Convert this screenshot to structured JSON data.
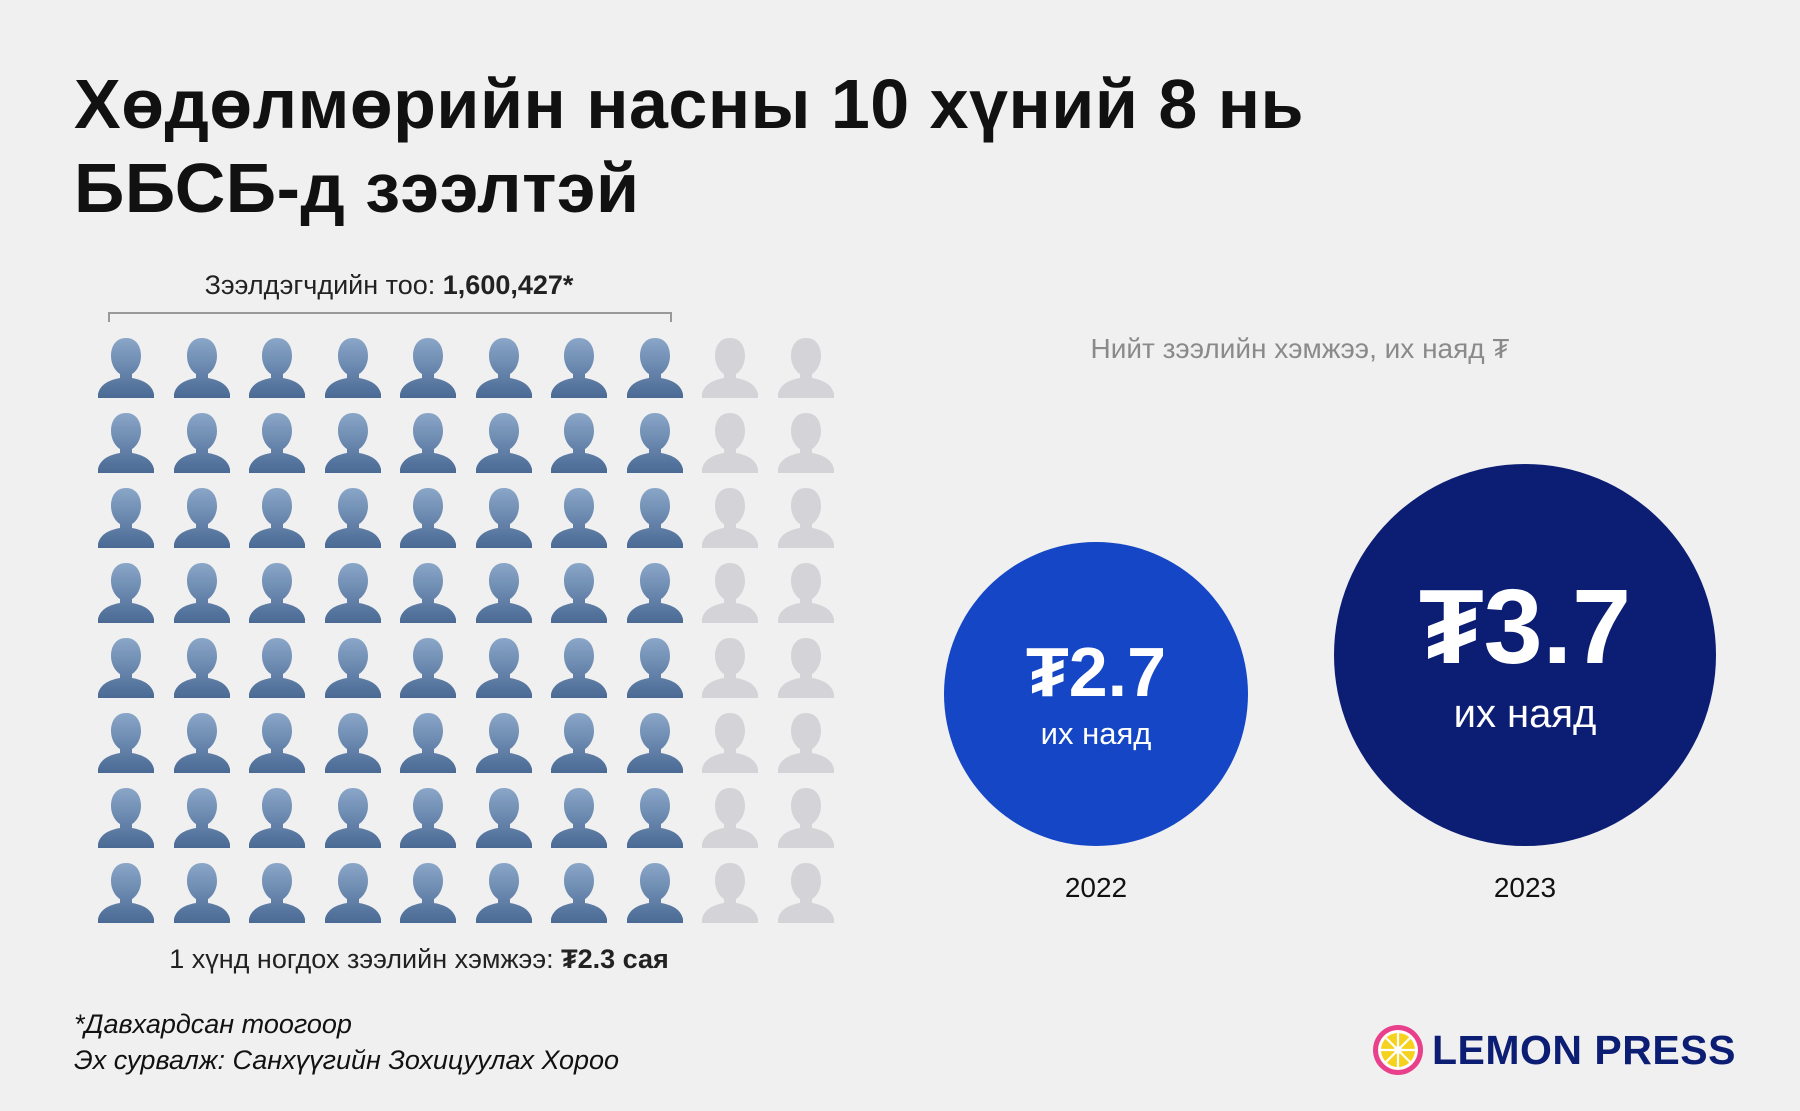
{
  "title": {
    "line1": "Хөдөлмөрийн насны 10 хүний 8 нь",
    "line2": "ББСБ-д зээлтэй"
  },
  "borrowers": {
    "label": "Зээлдэгчдийн тоо: ",
    "value": "1,600,427*"
  },
  "per_person": {
    "label": "1 хүнд ногдох зээлийн хэмжээ: ",
    "value": "₮2.3 сая"
  },
  "bubbles": {
    "heading": "Нийт зээлийн хэмжээ, их наяд ₮",
    "unit": "их наяд",
    "items": [
      {
        "year": "2022",
        "label": "₮2.7",
        "value": 2.7,
        "color": "#1446c6"
      },
      {
        "year": "2023",
        "label": "₮3.7",
        "value": 3.7,
        "color": "#0c1d74"
      }
    ]
  },
  "notes": {
    "footnote": "*Давхардсан тоогоор",
    "source": "Эх сурвалж: Санхүүгийн Зохицуулах Хороо"
  },
  "logo": {
    "text": "LEMON PRESS",
    "icon": "lemon-icon"
  },
  "chart_data": [
    {
      "type": "pictogram",
      "total": 10,
      "highlighted": 8,
      "unit": "хүн",
      "colors": {
        "highlighted": "#4a6a94",
        "other": "#d4d4d8"
      }
    },
    {
      "type": "bubble",
      "title": "Нийт зээлийн хэмжээ, их наяд ₮",
      "categories": [
        "2022",
        "2023"
      ],
      "values": [
        2.7,
        3.7
      ]
    }
  ]
}
